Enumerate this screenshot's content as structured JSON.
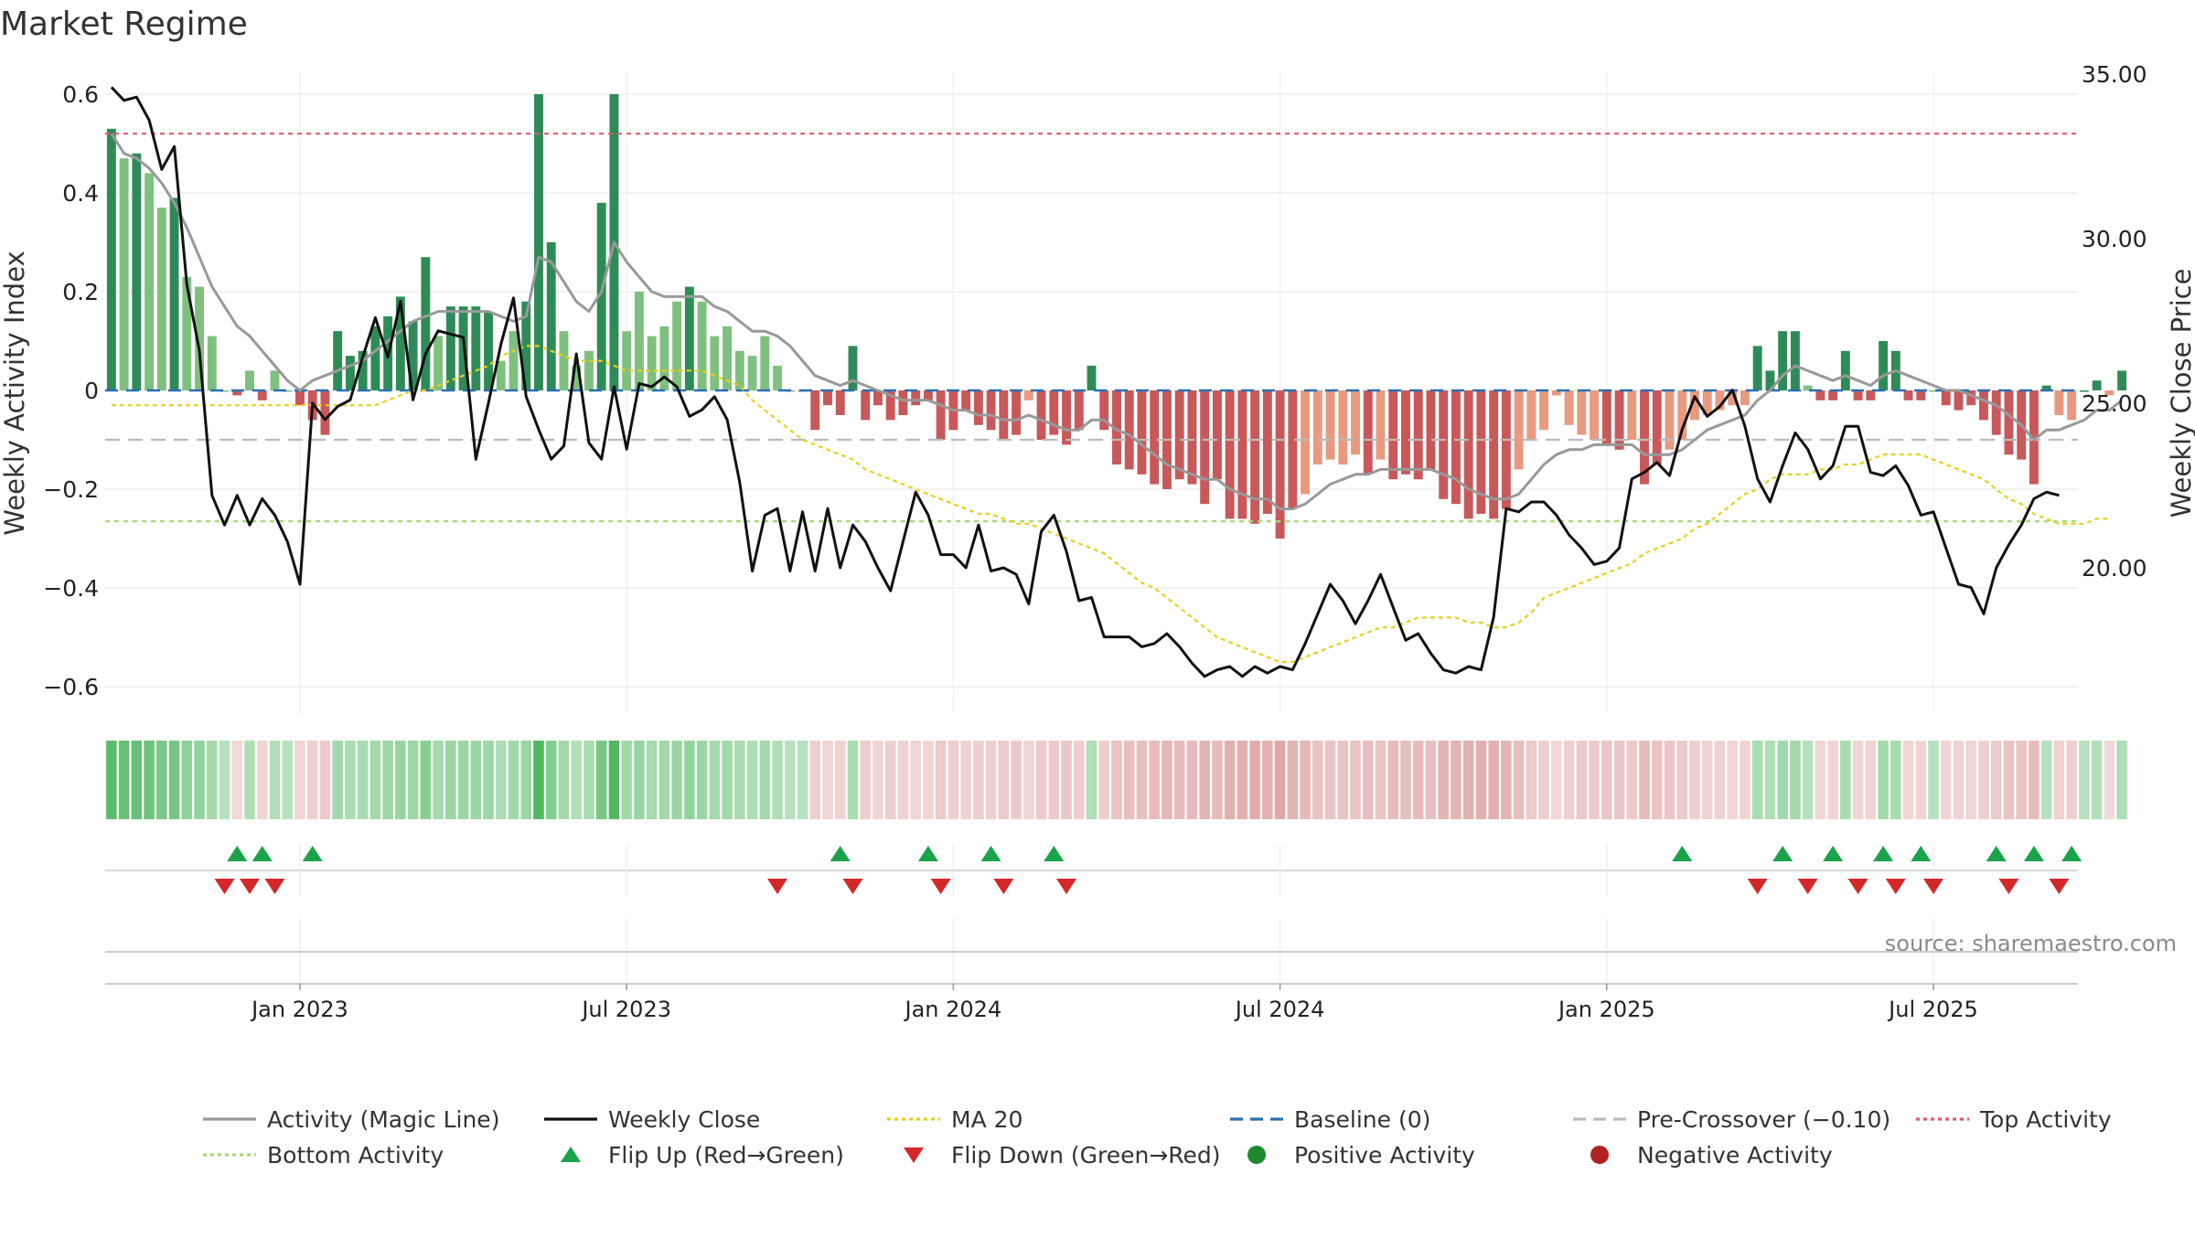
{
  "page": {
    "title": "Market Regime",
    "source": "source: sharemaestro.com"
  },
  "colors": {
    "strong_green": "#2e8b57",
    "light_green": "#7fc07f",
    "strong_red": "#c8585a",
    "light_red": "#e89a80",
    "magic_line": "#999999",
    "weekly_close": "#111111",
    "ma20": "#e6d020",
    "baseline": "#2a6fb0",
    "pre_crossover": "#bbbbbb",
    "top_activity": "#e05a70",
    "bottom_activity": "#a8d878",
    "flip_up": "#1aa34a",
    "flip_down": "#d62728",
    "positive": "#1e8a2e",
    "negative": "#b22222"
  },
  "chart_data": {
    "type": "bar",
    "title": "Market Regime",
    "y_left_label": "Weekly Activity Index",
    "y_right_label": "Weekly Close Price",
    "y_left_range": [
      -0.65,
      0.6
    ],
    "y_right_range": [
      16.0,
      35.0
    ],
    "y_left_ticks": [
      "0.6",
      "0.4",
      "0.2",
      "0",
      "−0.2",
      "−0.4",
      "−0.6"
    ],
    "y_right_ticks": [
      "35.00",
      "30.00",
      "25.00",
      "20.00"
    ],
    "x_tick_labels": [
      "Jan 2023",
      "Jul 2023",
      "Jan 2024",
      "Jul 2024",
      "Jan 2025",
      "Jul 2025"
    ],
    "x_tick_weeks": [
      15,
      41,
      67,
      93,
      119,
      145
    ],
    "week_count": 157,
    "levels": {
      "top": 0.52,
      "pre_crossover": -0.1,
      "bottom": -0.265,
      "baseline": 0
    },
    "activity": [
      0.53,
      0.47,
      0.48,
      0.44,
      0.37,
      0.39,
      0.23,
      0.21,
      0.11,
      0.0,
      -0.01,
      0.04,
      -0.02,
      0.04,
      0.0,
      -0.03,
      -0.06,
      -0.09,
      0.12,
      0.07,
      0.08,
      0.13,
      0.15,
      0.19,
      0.14,
      0.27,
      0.11,
      0.17,
      0.17,
      0.17,
      0.16,
      0.06,
      0.12,
      0.18,
      0.6,
      0.3,
      0.12,
      0.05,
      0.08,
      0.38,
      0.6,
      0.12,
      0.2,
      0.11,
      0.13,
      0.18,
      0.21,
      0.18,
      0.11,
      0.13,
      0.08,
      0.07,
      0.11,
      0.05,
      0.0,
      0.0,
      -0.08,
      -0.03,
      -0.05,
      0.09,
      -0.06,
      -0.03,
      -0.06,
      -0.05,
      -0.03,
      -0.02,
      -0.1,
      -0.08,
      -0.04,
      -0.07,
      -0.08,
      -0.1,
      -0.09,
      -0.02,
      -0.1,
      -0.09,
      -0.11,
      -0.08,
      0.05,
      -0.08,
      -0.15,
      -0.16,
      -0.17,
      -0.19,
      -0.2,
      -0.18,
      -0.19,
      -0.23,
      -0.18,
      -0.26,
      -0.26,
      -0.27,
      -0.25,
      -0.3,
      -0.24,
      -0.21,
      -0.15,
      -0.14,
      -0.15,
      -0.13,
      -0.17,
      -0.14,
      -0.18,
      -0.17,
      -0.18,
      -0.16,
      -0.22,
      -0.23,
      -0.26,
      -0.25,
      -0.26,
      -0.24,
      -0.16,
      -0.1,
      -0.08,
      -0.01,
      -0.07,
      -0.09,
      -0.1,
      -0.11,
      -0.12,
      -0.1,
      -0.19,
      -0.15,
      -0.12,
      -0.1,
      -0.06,
      -0.05,
      -0.04,
      -0.03,
      -0.03,
      0.09,
      0.04,
      0.12,
      0.12,
      0.01,
      -0.02,
      -0.02,
      0.08,
      -0.02,
      -0.02,
      0.1,
      0.08,
      -0.02,
      -0.02,
      0.0,
      -0.03,
      -0.04,
      -0.03,
      -0.06,
      -0.09,
      -0.13,
      -0.14,
      -0.19,
      0.01,
      -0.05,
      -0.06,
      0.0,
      0.02,
      -0.01,
      0.04
    ],
    "magic_line": [
      0.52,
      0.48,
      0.47,
      0.45,
      0.42,
      0.38,
      0.33,
      0.27,
      0.21,
      0.17,
      0.13,
      0.11,
      0.08,
      0.05,
      0.02,
      0.0,
      0.02,
      0.03,
      0.04,
      0.05,
      0.06,
      0.08,
      0.1,
      0.12,
      0.14,
      0.15,
      0.16,
      0.16,
      0.16,
      0.16,
      0.16,
      0.15,
      0.14,
      0.15,
      0.27,
      0.26,
      0.22,
      0.18,
      0.16,
      0.2,
      0.3,
      0.26,
      0.23,
      0.2,
      0.19,
      0.19,
      0.19,
      0.19,
      0.17,
      0.16,
      0.14,
      0.12,
      0.12,
      0.11,
      0.09,
      0.06,
      0.03,
      0.02,
      0.01,
      0.02,
      0.01,
      0.0,
      -0.01,
      -0.02,
      -0.02,
      -0.02,
      -0.03,
      -0.04,
      -0.04,
      -0.05,
      -0.05,
      -0.06,
      -0.06,
      -0.05,
      -0.06,
      -0.07,
      -0.08,
      -0.08,
      -0.06,
      -0.06,
      -0.08,
      -0.09,
      -0.11,
      -0.13,
      -0.15,
      -0.16,
      -0.17,
      -0.18,
      -0.18,
      -0.2,
      -0.21,
      -0.22,
      -0.22,
      -0.24,
      -0.24,
      -0.23,
      -0.21,
      -0.19,
      -0.18,
      -0.17,
      -0.17,
      -0.16,
      -0.16,
      -0.16,
      -0.16,
      -0.16,
      -0.17,
      -0.18,
      -0.2,
      -0.21,
      -0.22,
      -0.22,
      -0.21,
      -0.18,
      -0.15,
      -0.13,
      -0.12,
      -0.12,
      -0.11,
      -0.11,
      -0.11,
      -0.11,
      -0.13,
      -0.13,
      -0.13,
      -0.12,
      -0.1,
      -0.08,
      -0.07,
      -0.06,
      -0.05,
      -0.02,
      0.0,
      0.03,
      0.05,
      0.04,
      0.03,
      0.02,
      0.03,
      0.02,
      0.01,
      0.03,
      0.04,
      0.03,
      0.02,
      0.01,
      0.0,
      0.0,
      -0.01,
      -0.02,
      -0.03,
      -0.05,
      -0.07,
      -0.1,
      -0.08,
      -0.08,
      -0.07,
      -0.06,
      -0.04,
      -0.04,
      -0.02
    ],
    "weekly_close": [
      34.6,
      34.2,
      34.3,
      33.6,
      32.1,
      32.8,
      28.6,
      26.6,
      22.2,
      21.3,
      22.2,
      21.3,
      22.1,
      21.6,
      20.8,
      19.5,
      25.0,
      24.5,
      24.9,
      25.1,
      26.4,
      27.6,
      26.4,
      28.1,
      25.1,
      26.5,
      27.2,
      27.1,
      27.0,
      23.3,
      25.0,
      26.8,
      28.2,
      25.2,
      24.2,
      23.3,
      23.7,
      26.5,
      23.8,
      23.3,
      25.5,
      23.6,
      25.6,
      25.5,
      25.8,
      25.5,
      24.6,
      24.8,
      25.2,
      24.5,
      22.6,
      19.9,
      21.6,
      21.8,
      19.9,
      21.7,
      19.9,
      21.8,
      20.0,
      21.3,
      20.8,
      20.0,
      19.3,
      20.8,
      22.3,
      21.6,
      20.4,
      20.4,
      20.0,
      21.3,
      19.9,
      20.0,
      19.8,
      18.9,
      21.1,
      21.6,
      20.5,
      19.0,
      19.1,
      17.9,
      17.9,
      17.9,
      17.6,
      17.7,
      18.0,
      17.6,
      17.1,
      16.7,
      16.9,
      17.0,
      16.7,
      17.0,
      16.8,
      17.0,
      16.9,
      17.7,
      18.6,
      19.5,
      19.0,
      18.3,
      19.0,
      19.8,
      18.8,
      17.8,
      18.0,
      17.4,
      16.9,
      16.8,
      17.0,
      16.9,
      18.5,
      21.8,
      21.7,
      22.0,
      22.0,
      21.6,
      21.0,
      20.6,
      20.1,
      20.2,
      20.6,
      22.7,
      22.9,
      23.2,
      22.8,
      24.2,
      25.2,
      24.6,
      24.9,
      25.4,
      24.3,
      22.7,
      22.0,
      23.1,
      24.1,
      23.6,
      22.7,
      23.1,
      24.3,
      24.3,
      22.9,
      22.8,
      23.1,
      22.5,
      21.6,
      21.7,
      20.6,
      19.5,
      19.4,
      18.6,
      20.0,
      20.7,
      21.3,
      22.1,
      22.3,
      22.2
    ],
    "ma20": [
      -0.03,
      -0.03,
      -0.03,
      -0.03,
      -0.03,
      -0.03,
      -0.03,
      -0.03,
      -0.03,
      -0.03,
      -0.03,
      -0.03,
      -0.03,
      -0.03,
      -0.03,
      -0.03,
      -0.03,
      -0.03,
      -0.03,
      -0.03,
      -0.03,
      -0.03,
      -0.02,
      -0.01,
      0.0,
      0.0,
      0.01,
      0.02,
      0.03,
      0.04,
      0.05,
      0.07,
      0.08,
      0.09,
      0.09,
      0.08,
      0.07,
      0.06,
      0.06,
      0.06,
      0.05,
      0.04,
      0.04,
      0.04,
      0.04,
      0.04,
      0.04,
      0.04,
      0.03,
      0.02,
      0.01,
      -0.02,
      -0.04,
      -0.06,
      -0.08,
      -0.1,
      -0.11,
      -0.12,
      -0.13,
      -0.14,
      -0.16,
      -0.17,
      -0.18,
      -0.19,
      -0.2,
      -0.21,
      -0.22,
      -0.23,
      -0.24,
      -0.25,
      -0.25,
      -0.26,
      -0.27,
      -0.27,
      -0.28,
      -0.29,
      -0.3,
      -0.31,
      -0.32,
      -0.33,
      -0.35,
      -0.37,
      -0.39,
      -0.4,
      -0.42,
      -0.44,
      -0.46,
      -0.48,
      -0.5,
      -0.51,
      -0.52,
      -0.53,
      -0.54,
      -0.55,
      -0.55,
      -0.54,
      -0.53,
      -0.52,
      -0.51,
      -0.5,
      -0.49,
      -0.48,
      -0.48,
      -0.47,
      -0.46,
      -0.46,
      -0.46,
      -0.46,
      -0.47,
      -0.47,
      -0.48,
      -0.48,
      -0.47,
      -0.45,
      -0.42,
      -0.41,
      -0.4,
      -0.39,
      -0.38,
      -0.37,
      -0.36,
      -0.35,
      -0.33,
      -0.32,
      -0.31,
      -0.3,
      -0.28,
      -0.27,
      -0.25,
      -0.23,
      -0.21,
      -0.2,
      -0.18,
      -0.17,
      -0.17,
      -0.17,
      -0.16,
      -0.16,
      -0.15,
      -0.15,
      -0.14,
      -0.13,
      -0.13,
      -0.13,
      -0.13,
      -0.14,
      -0.15,
      -0.16,
      -0.17,
      -0.18,
      -0.2,
      -0.22,
      -0.23,
      -0.25,
      -0.26,
      -0.27,
      -0.27,
      -0.27,
      -0.26,
      -0.26
    ],
    "flip_up_weeks": [
      10,
      12,
      16,
      58,
      65,
      70,
      75,
      125,
      133,
      137,
      141,
      144,
      150,
      153,
      156
    ],
    "flip_down_weeks": [
      9,
      11,
      13,
      53,
      59,
      66,
      71,
      76,
      131,
      135,
      139,
      142,
      145,
      151,
      155
    ],
    "legend": [
      {
        "label": "Activity (Magic Line)",
        "kind": "line",
        "color": "#999999",
        "dash": ""
      },
      {
        "label": "Weekly Close",
        "kind": "line",
        "color": "#111111",
        "dash": ""
      },
      {
        "label": "MA 20",
        "kind": "line",
        "color": "#e6d020",
        "dash": "4,4"
      },
      {
        "label": "Baseline (0)",
        "kind": "line",
        "color": "#2a6fb0",
        "dash": "14,8"
      },
      {
        "label": "Pre-Crossover (−0.10)",
        "kind": "line",
        "color": "#bbbbbb",
        "dash": "14,8"
      },
      {
        "label": "Top Activity",
        "kind": "line",
        "color": "#e05a70",
        "dash": "4,4"
      },
      {
        "label": "Bottom Activity",
        "kind": "line",
        "color": "#a8d878",
        "dash": "4,4"
      },
      {
        "label": "Flip Up (Red→Green)",
        "kind": "tri-up",
        "color": "#1aa34a",
        "dash": ""
      },
      {
        "label": "Flip Down (Green→Red)",
        "kind": "tri-down",
        "color": "#d62728",
        "dash": ""
      },
      {
        "label": "Positive Activity",
        "kind": "dot",
        "color": "#1e8a2e",
        "dash": ""
      },
      {
        "label": "Negative Activity",
        "kind": "dot",
        "color": "#b22222",
        "dash": ""
      }
    ]
  }
}
